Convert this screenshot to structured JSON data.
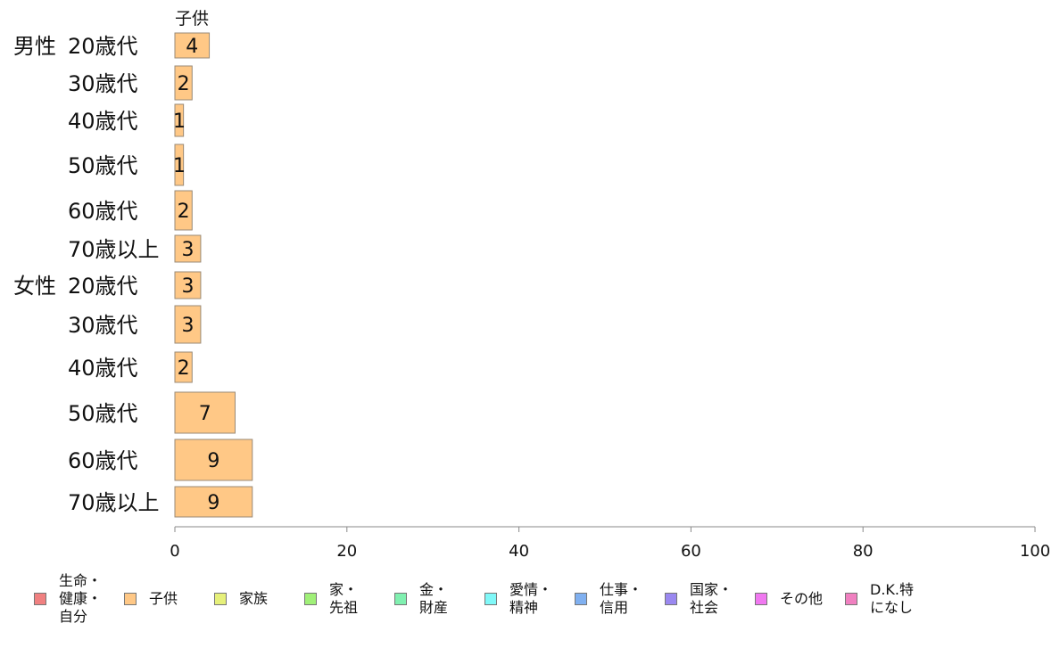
{
  "chart_data": {
    "type": "bar",
    "orientation": "horizontal",
    "series_header": "子供",
    "groups": [
      {
        "name": "男性",
        "categories": [
          "20歳代",
          "30歳代",
          "40歳代",
          "50歳代",
          "60歳代",
          "70歳以上"
        ]
      },
      {
        "name": "女性",
        "categories": [
          "20歳代",
          "30歳代",
          "40歳代",
          "50歳代",
          "60歳代",
          "70歳以上"
        ]
      }
    ],
    "series": [
      {
        "name": "子供",
        "color": "#ffc886",
        "values": [
          4,
          2,
          1,
          1,
          2,
          3,
          3,
          3,
          2,
          7,
          9,
          9
        ]
      }
    ],
    "xlim": [
      0,
      100
    ],
    "xticks": [
      0,
      20,
      40,
      60,
      80,
      100
    ],
    "grid": false,
    "legend_position": "bottom",
    "legend": [
      {
        "label": "生命・\n健康・\n自分",
        "color": "#f08080"
      },
      {
        "label": "子供",
        "color": "#ffc886"
      },
      {
        "label": "家族",
        "color": "#e6f07a"
      },
      {
        "label": "家・\n先祖",
        "color": "#a0f078"
      },
      {
        "label": "金・\n財産",
        "color": "#80f0b0"
      },
      {
        "label": "愛情・\n精神",
        "color": "#80f8f8"
      },
      {
        "label": "仕事・\n信用",
        "color": "#80b0f0"
      },
      {
        "label": "国家・\n社会",
        "color": "#9a88f0"
      },
      {
        "label": "その他",
        "color": "#f078f0"
      },
      {
        "label": "D.K.特\nになし",
        "color": "#f080c0"
      }
    ]
  }
}
